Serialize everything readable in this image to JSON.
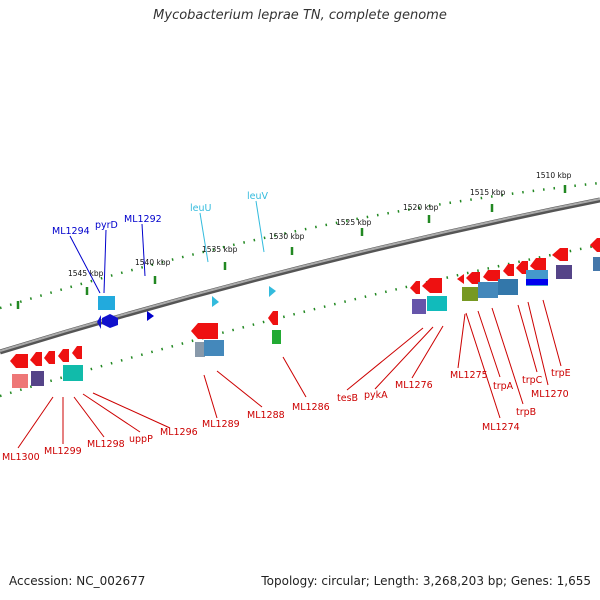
{
  "title": "Mycobacterium leprae TN, complete genome",
  "accession": "Accession: NC_002677",
  "summary": "Topology: circular; Length: 3,268,203 bp; Genes: 1,655",
  "colors": {
    "forward_gene": "#ee1111",
    "backbone": "#808080",
    "tick": "#228822",
    "label_blue": "#0000cc",
    "label_cyan": "#33bbdd",
    "label_red": "#cc0000"
  },
  "ticks": [
    "1510 kbp",
    "1515 kbp",
    "1520 kbp",
    "1525 kbp",
    "1530 kbp",
    "1535 kbp",
    "1540 kbp",
    "1545 kbp"
  ],
  "gene_labels": {
    "blue": [
      "ML1294",
      "pyrD",
      "ML1292"
    ],
    "cyan": [
      "leuU",
      "leuV"
    ],
    "red": [
      "ML1300",
      "ML1299",
      "ML1298",
      "uppP",
      "ML1296",
      "ML1289",
      "ML1288",
      "ML1286",
      "tesB",
      "pykA",
      "ML1276",
      "ML1275",
      "trpA",
      "ML1274",
      "trpB",
      "trpC",
      "ML1270",
      "trpE"
    ]
  }
}
